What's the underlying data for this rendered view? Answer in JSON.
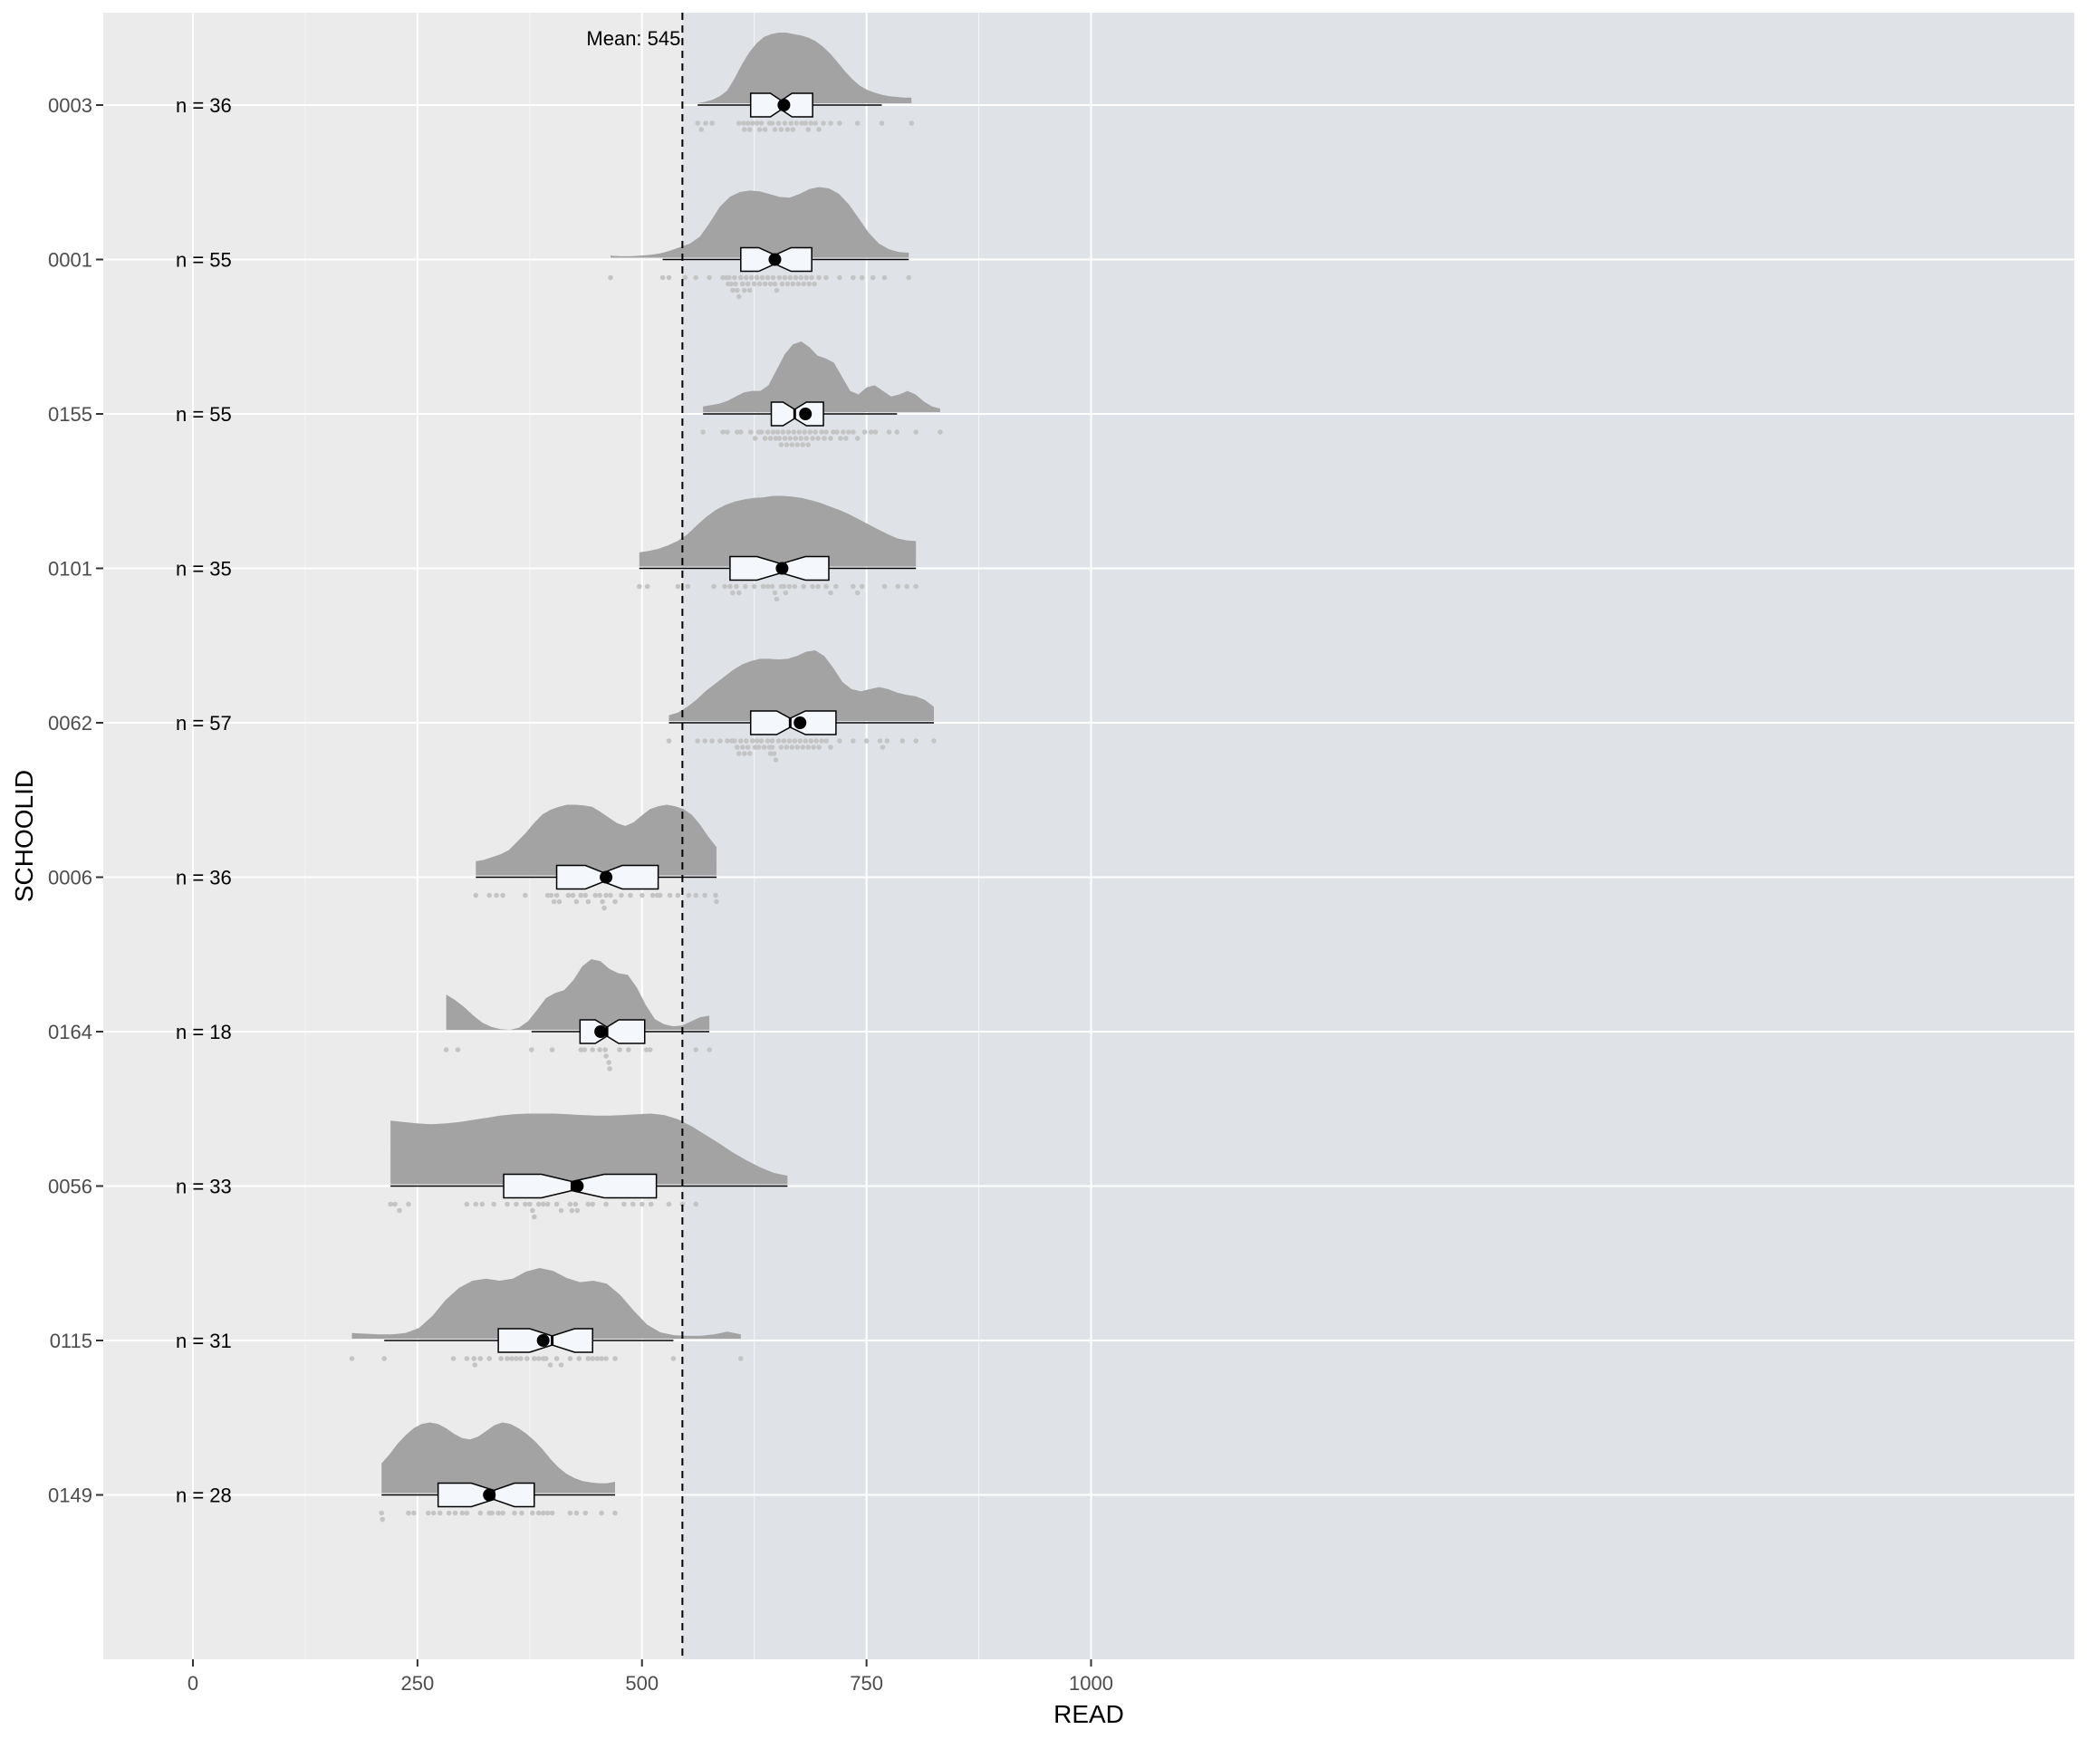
{
  "chart_data": {
    "type": "raincloud",
    "xlabel": "READ",
    "ylabel": "SCHOOLID",
    "xlim": [
      -50,
      1050
    ],
    "xticks": [
      0,
      250,
      500,
      750,
      1000
    ],
    "grid": true,
    "highlight_region": {
      "from": 545,
      "to": 1050
    },
    "mean_line": {
      "value": 545,
      "label": "Mean: 545"
    },
    "groups": [
      {
        "id": "0003",
        "n_label": "n = 36",
        "whisker": [
          562,
          767
        ],
        "box": [
          621,
          690
        ],
        "median": 655,
        "mean": 658,
        "notch": [
          643,
          667
        ],
        "cloud_range": [
          562,
          800
        ],
        "density": [
          0,
          0.02,
          0.05,
          0.1,
          0.18,
          0.35,
          0.55,
          0.72,
          0.85,
          0.94,
          0.98,
          1,
          1,
          0.98,
          0.96,
          0.93,
          0.88,
          0.8,
          0.7,
          0.58,
          0.45,
          0.34,
          0.25,
          0.19,
          0.15,
          0.12,
          0.1,
          0.09,
          0.08,
          0.08
        ],
        "points": [
          562,
          566,
          571,
          578,
          608,
          613,
          614,
          618,
          620,
          623,
          628,
          631,
          633,
          637,
          642,
          645,
          648,
          652,
          655,
          659,
          662,
          666,
          668,
          672,
          678,
          682,
          685,
          688,
          693,
          697,
          702,
          710,
          720,
          740,
          767,
          800
        ]
      },
      {
        "id": "0001",
        "n_label": "n = 55",
        "whisker": [
          523,
          797
        ],
        "box": [
          610,
          689
        ],
        "median": 648,
        "mean": 648,
        "notch": [
          630,
          666
        ],
        "cloud_range": [
          465,
          797
        ],
        "density": [
          0.03,
          0.02,
          0.02,
          0.03,
          0.04,
          0.06,
          0.1,
          0.15,
          0.2,
          0.3,
          0.5,
          0.72,
          0.86,
          0.93,
          0.95,
          0.94,
          0.9,
          0.86,
          0.85,
          0.9,
          0.97,
          1,
          0.98,
          0.9,
          0.75,
          0.55,
          0.35,
          0.2,
          0.12,
          0.08,
          0.07
        ],
        "points": [
          465,
          523,
          530,
          548,
          560,
          575,
          590,
          594,
          596,
          597,
          599,
          601,
          603,
          604,
          606,
          608,
          610,
          612,
          614,
          616,
          618,
          620,
          622,
          625,
          628,
          631,
          634,
          637,
          640,
          643,
          646,
          648,
          650,
          653,
          656,
          659,
          662,
          665,
          668,
          671,
          674,
          677,
          680,
          683,
          686,
          689,
          692,
          697,
          705,
          720,
          735,
          745,
          757,
          770,
          797
        ]
      },
      {
        "id": "0155",
        "n_label": "n = 55",
        "whisker": [
          568,
          784
        ],
        "box": [
          644,
          702
        ],
        "median": 670,
        "mean": 682,
        "notch": [
          657,
          683
        ],
        "cloud_range": [
          568,
          832
        ],
        "density": [
          0.08,
          0.1,
          0.12,
          0.16,
          0.22,
          0.28,
          0.3,
          0.3,
          0.38,
          0.6,
          0.82,
          0.96,
          1,
          0.92,
          0.8,
          0.76,
          0.7,
          0.5,
          0.3,
          0.25,
          0.35,
          0.38,
          0.3,
          0.22,
          0.25,
          0.3,
          0.25,
          0.15,
          0.08,
          0.05
        ],
        "points": [
          568,
          590,
          595,
          606,
          610,
          621,
          626,
          630,
          633,
          637,
          640,
          643,
          646,
          649,
          651,
          653,
          655,
          657,
          659,
          661,
          663,
          665,
          667,
          669,
          671,
          673,
          675,
          677,
          679,
          681,
          683,
          685,
          687,
          690,
          693,
          696,
          700,
          703,
          705,
          710,
          713,
          717,
          721,
          724,
          727,
          730,
          735,
          740,
          748,
          755,
          760,
          775,
          784,
          805,
          832
        ]
      },
      {
        "id": "0101",
        "n_label": "n = 35",
        "whisker": [
          497,
          805
        ],
        "box": [
          598,
          708
        ],
        "median": 655,
        "mean": 656,
        "notch": [
          628,
          682
        ],
        "cloud_range": [
          497,
          805
        ],
        "density": [
          0.2,
          0.22,
          0.25,
          0.3,
          0.36,
          0.45,
          0.58,
          0.7,
          0.8,
          0.87,
          0.92,
          0.95,
          0.97,
          0.98,
          1,
          1,
          0.99,
          0.97,
          0.94,
          0.9,
          0.85,
          0.8,
          0.74,
          0.67,
          0.6,
          0.53,
          0.46,
          0.4,
          0.37,
          0.36
        ],
        "points": [
          497,
          506,
          540,
          551,
          580,
          592,
          598,
          601,
          605,
          608,
          615,
          625,
          635,
          640,
          645,
          648,
          650,
          655,
          658,
          660,
          664,
          670,
          680,
          690,
          696,
          705,
          710,
          716,
          735,
          740,
          745,
          770,
          785,
          795,
          805
        ]
      },
      {
        "id": "0062",
        "n_label": "n = 57",
        "whisker": [
          530,
          825
        ],
        "box": [
          621,
          716
        ],
        "median": 665,
        "mean": 676,
        "notch": [
          650,
          682
        ],
        "cloud_range": [
          530,
          825
        ],
        "density": [
          0.08,
          0.12,
          0.2,
          0.3,
          0.42,
          0.52,
          0.62,
          0.72,
          0.8,
          0.85,
          0.88,
          0.88,
          0.87,
          0.88,
          0.92,
          0.98,
          1,
          0.92,
          0.75,
          0.55,
          0.45,
          0.42,
          0.45,
          0.48,
          0.45,
          0.4,
          0.37,
          0.35,
          0.3,
          0.2
        ],
        "points": [
          530,
          562,
          570,
          578,
          587,
          595,
          600,
          603,
          606,
          608,
          610,
          612,
          614,
          616,
          618,
          620,
          623,
          626,
          628,
          630,
          633,
          636,
          640,
          642,
          643,
          645,
          645,
          647,
          649,
          652,
          655,
          658,
          661,
          664,
          667,
          670,
          673,
          676,
          679,
          682,
          685,
          688,
          691,
          694,
          697,
          700,
          705,
          710,
          720,
          735,
          750,
          765,
          768,
          773,
          790,
          805,
          825
        ]
      },
      {
        "id": "0006",
        "n_label": "n = 36",
        "whisker": [
          315,
          583
        ],
        "box": [
          405,
          518
        ],
        "median": 457,
        "mean": 460,
        "notch": [
          437,
          478
        ],
        "cloud_range": [
          315,
          583
        ],
        "density": [
          0.2,
          0.22,
          0.26,
          0.3,
          0.36,
          0.48,
          0.6,
          0.74,
          0.86,
          0.93,
          0.97,
          1,
          1,
          0.99,
          0.97,
          0.9,
          0.82,
          0.74,
          0.7,
          0.75,
          0.85,
          0.94,
          0.98,
          1,
          0.98,
          0.94,
          0.86,
          0.72,
          0.55,
          0.4
        ],
        "points": [
          315,
          330,
          338,
          345,
          370,
          395,
          399,
          402,
          405,
          408,
          418,
          423,
          427,
          432,
          437,
          440,
          448,
          453,
          456,
          458,
          460,
          465,
          470,
          477,
          487,
          500,
          512,
          517,
          520,
          531,
          540,
          552,
          560,
          570,
          582,
          583
        ]
      },
      {
        "id": "0164",
        "n_label": "n = 18",
        "whisker": [
          377,
          575
        ],
        "box": [
          431,
          503
        ],
        "median": 461,
        "mean": 454,
        "notch": [
          448,
          474
        ],
        "cloud_range": [
          282,
          575
        ],
        "density": [
          0.5,
          0.42,
          0.32,
          0.2,
          0.1,
          0.04,
          0.01,
          0,
          0.03,
          0.12,
          0.28,
          0.45,
          0.52,
          0.56,
          0.7,
          0.9,
          1,
          0.97,
          0.86,
          0.8,
          0.78,
          0.6,
          0.35,
          0.15,
          0.08,
          0.05,
          0.06,
          0.12,
          0.18,
          0.2
        ],
        "points": [
          282,
          295,
          377,
          400,
          432,
          436,
          445,
          453,
          459,
          460,
          463,
          464,
          475,
          485,
          505,
          509,
          560,
          575
        ]
      },
      {
        "id": "0056",
        "n_label": "n = 33",
        "whisker": [
          220,
          662
        ],
        "box": [
          346,
          516
        ],
        "median": 422,
        "mean": 428,
        "notch": [
          388,
          458
        ],
        "cloud_range": [
          220,
          662
        ],
        "density": [
          0.9,
          0.88,
          0.86,
          0.85,
          0.86,
          0.88,
          0.91,
          0.94,
          0.97,
          0.99,
          1,
          1,
          1,
          0.99,
          0.98,
          0.97,
          0.97,
          0.98,
          0.99,
          1,
          0.98,
          0.92,
          0.82,
          0.7,
          0.58,
          0.45,
          0.34,
          0.24,
          0.16,
          0.12
        ],
        "points": [
          220,
          225,
          230,
          240,
          305,
          315,
          322,
          335,
          350,
          360,
          370,
          375,
          378,
          380,
          385,
          390,
          395,
          405,
          410,
          420,
          422,
          426,
          428,
          440,
          445,
          460,
          480,
          490,
          500,
          510,
          530,
          545,
          560
        ]
      },
      {
        "id": "0115",
        "n_label": "n = 31",
        "whisker": [
          213,
          535
        ],
        "box": [
          340,
          445
        ],
        "median": 400,
        "mean": 390,
        "notch": [
          375,
          425
        ],
        "cloud_range": [
          177,
          610
        ],
        "density": [
          0.08,
          0.07,
          0.06,
          0.06,
          0.08,
          0.15,
          0.32,
          0.55,
          0.72,
          0.82,
          0.85,
          0.82,
          0.85,
          0.95,
          1,
          0.96,
          0.86,
          0.8,
          0.82,
          0.78,
          0.62,
          0.4,
          0.2,
          0.09,
          0.05,
          0.04,
          0.04,
          0.06,
          0.1,
          0.06
        ],
        "points": [
          177,
          213,
          290,
          305,
          313,
          314,
          320,
          330,
          343,
          350,
          355,
          360,
          365,
          372,
          380,
          385,
          390,
          393,
          398,
          405,
          410,
          420,
          430,
          440,
          445,
          450,
          455,
          460,
          470,
          535,
          610
        ]
      },
      {
        "id": "0149",
        "n_label": "n = 28",
        "whisker": [
          210,
          470
        ],
        "box": [
          273,
          380
        ],
        "median": 335,
        "mean": 330,
        "notch": [
          310,
          358
        ],
        "cloud_range": [
          210,
          470
        ],
        "density": [
          0.42,
          0.55,
          0.7,
          0.82,
          0.92,
          0.98,
          1,
          0.98,
          0.92,
          0.84,
          0.78,
          0.76,
          0.8,
          0.88,
          0.96,
          1,
          0.98,
          0.92,
          0.84,
          0.74,
          0.62,
          0.48,
          0.36,
          0.27,
          0.21,
          0.17,
          0.15,
          0.14,
          0.14,
          0.16
        ],
        "points": [
          210,
          211,
          240,
          246,
          262,
          268,
          275,
          285,
          292,
          300,
          305,
          320,
          330,
          333,
          340,
          345,
          358,
          366,
          378,
          385,
          390,
          395,
          400,
          420,
          427,
          437,
          455,
          470
        ]
      }
    ]
  }
}
